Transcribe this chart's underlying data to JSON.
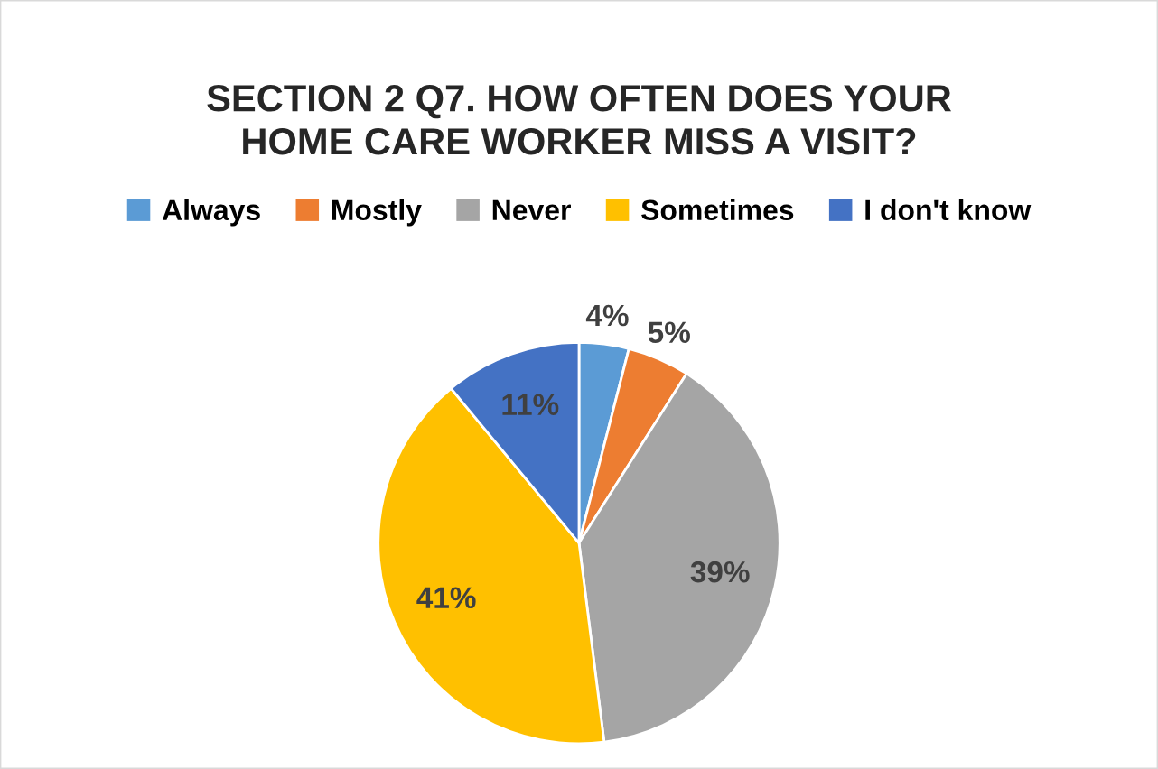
{
  "chart_data": {
    "type": "pie",
    "title": "SECTION 2 Q7. HOW OFTEN DOES YOUR\nHOME CARE WORKER MISS A VISIT?",
    "categories": [
      "Always",
      "Mostly",
      "Never",
      "Sometimes",
      "I don't know"
    ],
    "values": [
      4,
      5,
      39,
      41,
      11
    ],
    "colors": [
      "#5b9bd5",
      "#ed7d31",
      "#a5a5a5",
      "#ffc000",
      "#4472c4"
    ],
    "value_labels": [
      "4%",
      "5%",
      "39%",
      "41%",
      "11%"
    ],
    "legend": "top"
  }
}
